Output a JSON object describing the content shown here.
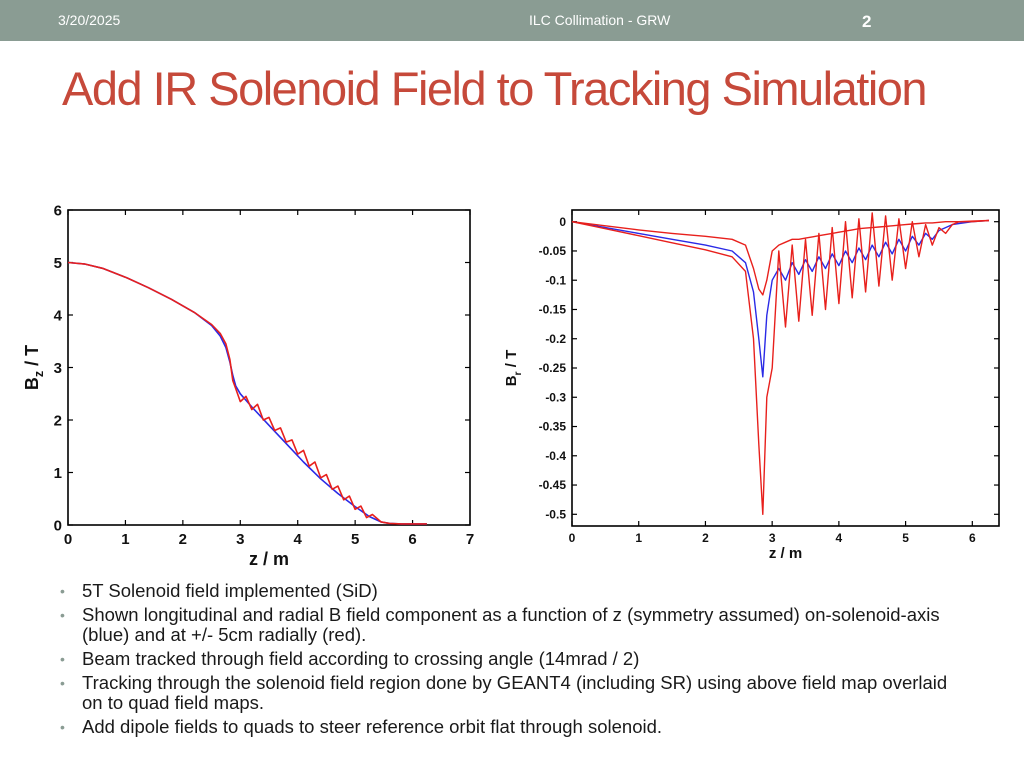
{
  "header": {
    "date": "3/20/2025",
    "title": "ILC Collimation - GRW",
    "page": "2"
  },
  "slide": {
    "title": "Add IR Solenoid Field to Tracking Simulation"
  },
  "colors": {
    "header_bg": "#8a9c93",
    "title": "#c6493a",
    "blue": "#2a2ae6",
    "red": "#e8201c"
  },
  "chart_data": [
    {
      "type": "line",
      "title": "",
      "xlabel": "z / m",
      "ylabel_main": "B",
      "ylabel_sub": "z",
      "ylabel_unit": " / T",
      "xlim": [
        0,
        7
      ],
      "ylim": [
        0,
        6
      ],
      "xticks": [
        "0",
        "1",
        "2",
        "3",
        "4",
        "5",
        "6",
        "7"
      ],
      "yticks": [
        "0",
        "1",
        "2",
        "3",
        "4",
        "5",
        "6"
      ],
      "series": [
        {
          "name": "on-axis (blue)",
          "color": "#2a2ae6",
          "x": [
            0,
            0.3,
            0.6,
            1.0,
            1.4,
            1.8,
            2.2,
            2.5,
            2.65,
            2.75,
            2.82,
            2.87,
            2.92,
            3.0,
            3.2,
            3.5,
            3.8,
            4.1,
            4.4,
            4.7,
            5.0,
            5.25,
            5.45,
            5.6,
            5.8,
            6.0,
            6.25
          ],
          "y": [
            5.0,
            4.97,
            4.89,
            4.72,
            4.52,
            4.3,
            4.05,
            3.8,
            3.6,
            3.38,
            3.1,
            2.85,
            2.65,
            2.5,
            2.25,
            1.9,
            1.55,
            1.2,
            0.88,
            0.6,
            0.35,
            0.16,
            0.06,
            0.03,
            0.02,
            0.02,
            0.02
          ]
        },
        {
          "name": "+/- 5cm radially (red)",
          "color": "#e8201c",
          "x": [
            0,
            0.3,
            0.6,
            1.0,
            1.4,
            1.8,
            2.2,
            2.5,
            2.65,
            2.75,
            2.82,
            2.87,
            2.92,
            3.0,
            3.1,
            3.2,
            3.3,
            3.4,
            3.5,
            3.6,
            3.7,
            3.8,
            3.9,
            4.0,
            4.1,
            4.2,
            4.3,
            4.4,
            4.5,
            4.6,
            4.7,
            4.8,
            4.9,
            5.0,
            5.1,
            5.2,
            5.3,
            5.45,
            5.6,
            5.8,
            6.0,
            6.25
          ],
          "y": [
            5.0,
            4.97,
            4.89,
            4.72,
            4.52,
            4.3,
            4.05,
            3.82,
            3.65,
            3.45,
            3.15,
            2.75,
            2.6,
            2.35,
            2.45,
            2.2,
            2.3,
            2.0,
            2.05,
            1.8,
            1.85,
            1.58,
            1.62,
            1.35,
            1.42,
            1.12,
            1.2,
            0.9,
            0.96,
            0.68,
            0.74,
            0.48,
            0.55,
            0.3,
            0.36,
            0.14,
            0.2,
            0.06,
            0.03,
            0.02,
            0.02,
            0.02
          ]
        }
      ]
    },
    {
      "type": "line",
      "title": "",
      "xlabel": "z / m",
      "ylabel_main": "B",
      "ylabel_sub": "r",
      "ylabel_unit": " / T",
      "xlim": [
        0,
        6.4
      ],
      "ylim": [
        -0.52,
        0.02
      ],
      "xticks": [
        "0",
        "1",
        "2",
        "3",
        "4",
        "5",
        "6"
      ],
      "yticks": [
        "0",
        "-0.05",
        "-0.1",
        "-0.15",
        "-0.2",
        "-0.25",
        "-0.3",
        "-0.35",
        "-0.4",
        "-0.45",
        "-0.5"
      ],
      "series": [
        {
          "name": "on-axis (blue)",
          "color": "#2a2ae6",
          "x": [
            0,
            0.5,
            1.0,
            1.5,
            2.0,
            2.4,
            2.6,
            2.72,
            2.8,
            2.86,
            2.92,
            3.0,
            3.1,
            3.2,
            3.3,
            3.4,
            3.5,
            3.6,
            3.7,
            3.8,
            3.9,
            4.0,
            4.1,
            4.2,
            4.3,
            4.4,
            4.5,
            4.6,
            4.7,
            4.8,
            4.9,
            5.0,
            5.1,
            5.2,
            5.3,
            5.4,
            5.5,
            5.6,
            5.7,
            5.8,
            6.0,
            6.25
          ],
          "y": [
            0,
            -0.01,
            -0.02,
            -0.03,
            -0.04,
            -0.05,
            -0.07,
            -0.12,
            -0.2,
            -0.265,
            -0.16,
            -0.1,
            -0.08,
            -0.1,
            -0.07,
            -0.09,
            -0.065,
            -0.085,
            -0.06,
            -0.08,
            -0.055,
            -0.075,
            -0.05,
            -0.07,
            -0.045,
            -0.065,
            -0.04,
            -0.06,
            -0.035,
            -0.055,
            -0.03,
            -0.05,
            -0.025,
            -0.04,
            -0.02,
            -0.03,
            -0.015,
            -0.01,
            -0.005,
            -0.003,
            0.0,
            0.002
          ]
        },
        {
          "name": "+5cm radially (red)",
          "color": "#e8201c",
          "x": [
            0,
            0.5,
            1.0,
            1.5,
            2.0,
            2.4,
            2.6,
            2.72,
            2.8,
            2.86,
            2.92,
            3.0,
            3.1,
            3.2,
            3.3,
            3.4,
            3.5,
            3.6,
            3.7,
            3.8,
            3.9,
            4.0,
            4.1,
            4.2,
            4.3,
            4.4,
            4.5,
            4.6,
            4.7,
            4.8,
            4.9,
            5.0,
            5.1,
            5.2,
            5.3,
            5.4,
            5.5,
            5.6,
            5.7,
            5.8,
            6.0,
            6.25
          ],
          "y": [
            0,
            -0.007,
            -0.014,
            -0.02,
            -0.025,
            -0.03,
            -0.04,
            -0.08,
            -0.115,
            -0.125,
            -0.1,
            -0.05,
            -0.04,
            -0.035,
            -0.03,
            -0.03,
            -0.028,
            -0.026,
            -0.024,
            -0.022,
            -0.02,
            -0.018,
            -0.016,
            -0.014,
            -0.012,
            -0.011,
            -0.01,
            -0.009,
            -0.008,
            -0.007,
            -0.006,
            -0.005,
            -0.004,
            -0.003,
            -0.002,
            -0.002,
            -0.001,
            0.0,
            0.0,
            0.0,
            0.001,
            0.002
          ]
        },
        {
          "name": "-5cm radially (red)",
          "color": "#e8201c",
          "x": [
            0,
            0.5,
            1.0,
            1.5,
            2.0,
            2.4,
            2.6,
            2.72,
            2.8,
            2.86,
            2.92,
            3.0,
            3.1,
            3.2,
            3.3,
            3.4,
            3.5,
            3.6,
            3.7,
            3.8,
            3.9,
            4.0,
            4.1,
            4.2,
            4.3,
            4.4,
            4.5,
            4.6,
            4.7,
            4.8,
            4.9,
            5.0,
            5.1,
            5.2,
            5.3,
            5.4,
            5.5,
            5.6,
            5.7,
            5.8,
            6.0,
            6.25
          ],
          "y": [
            0,
            -0.012,
            -0.024,
            -0.036,
            -0.048,
            -0.06,
            -0.085,
            -0.2,
            -0.38,
            -0.5,
            -0.3,
            -0.25,
            -0.05,
            -0.18,
            -0.04,
            -0.17,
            -0.03,
            -0.16,
            -0.02,
            -0.15,
            -0.01,
            -0.14,
            0.0,
            -0.13,
            0.005,
            -0.12,
            0.015,
            -0.11,
            0.01,
            -0.1,
            0.005,
            -0.08,
            0.0,
            -0.06,
            -0.005,
            -0.04,
            -0.01,
            -0.02,
            -0.005,
            0.0,
            0.0,
            0.002
          ]
        }
      ]
    }
  ],
  "bullets": [
    "5T Solenoid field implemented (SiD)",
    "Shown longitudinal and radial B field component as a function of z (symmetry assumed) on-solenoid-axis (blue) and at +/- 5cm radially (red).",
    "Beam tracked through field according to crossing angle (14mrad / 2)",
    "Tracking through the solenoid field region done by GEANT4 (including SR) using above field map overlaid on to quad field maps.",
    "Add dipole fields to quads to steer reference orbit flat through solenoid."
  ]
}
